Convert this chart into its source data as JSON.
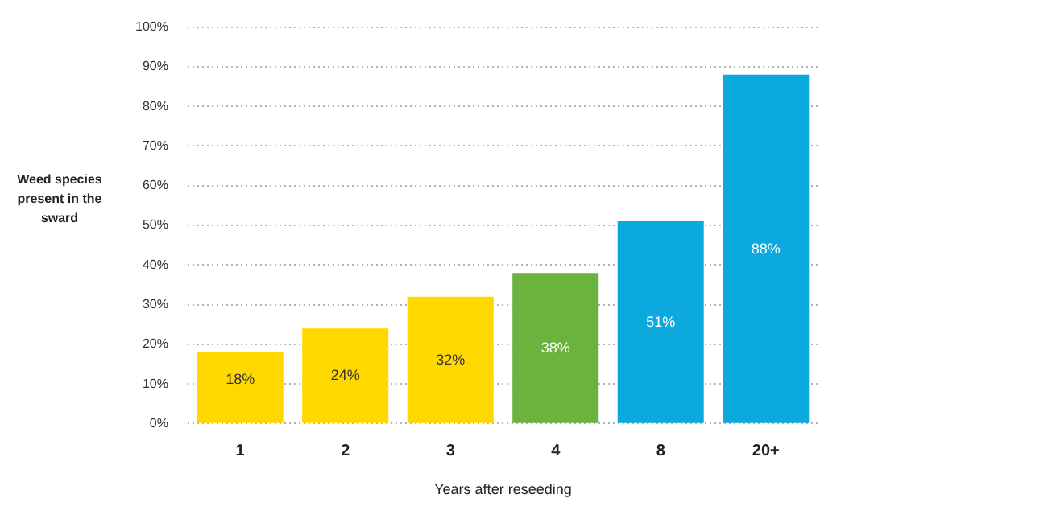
{
  "chart_data": {
    "type": "bar",
    "xlabel": "Years after reseeding",
    "ylabel": "Weed species present in the sward",
    "categories": [
      "1",
      "2",
      "3",
      "4",
      "8",
      "20+"
    ],
    "values": [
      18,
      24,
      32,
      38,
      51,
      88
    ],
    "colors": [
      "#ffd800",
      "#ffd800",
      "#ffd800",
      "#6cb33e",
      "#0ba9dd",
      "#0ba9dd"
    ],
    "value_labels": [
      "18%",
      "24%",
      "32%",
      "38%",
      "51%",
      "88%"
    ],
    "ylim": [
      0,
      100
    ],
    "yticks": [
      {
        "value": 0,
        "label": "0%"
      },
      {
        "value": 10,
        "label": "10%"
      },
      {
        "value": 20,
        "label": "20%"
      },
      {
        "value": 30,
        "label": "30%"
      },
      {
        "value": 40,
        "label": "40%"
      },
      {
        "value": 50,
        "label": "50%"
      },
      {
        "value": 60,
        "label": "60%"
      },
      {
        "value": 70,
        "label": "70%"
      },
      {
        "value": 80,
        "label": "80%"
      },
      {
        "value": 90,
        "label": "90%"
      },
      {
        "value": 100,
        "label": "100%"
      }
    ],
    "grid": "y",
    "legend": false
  }
}
